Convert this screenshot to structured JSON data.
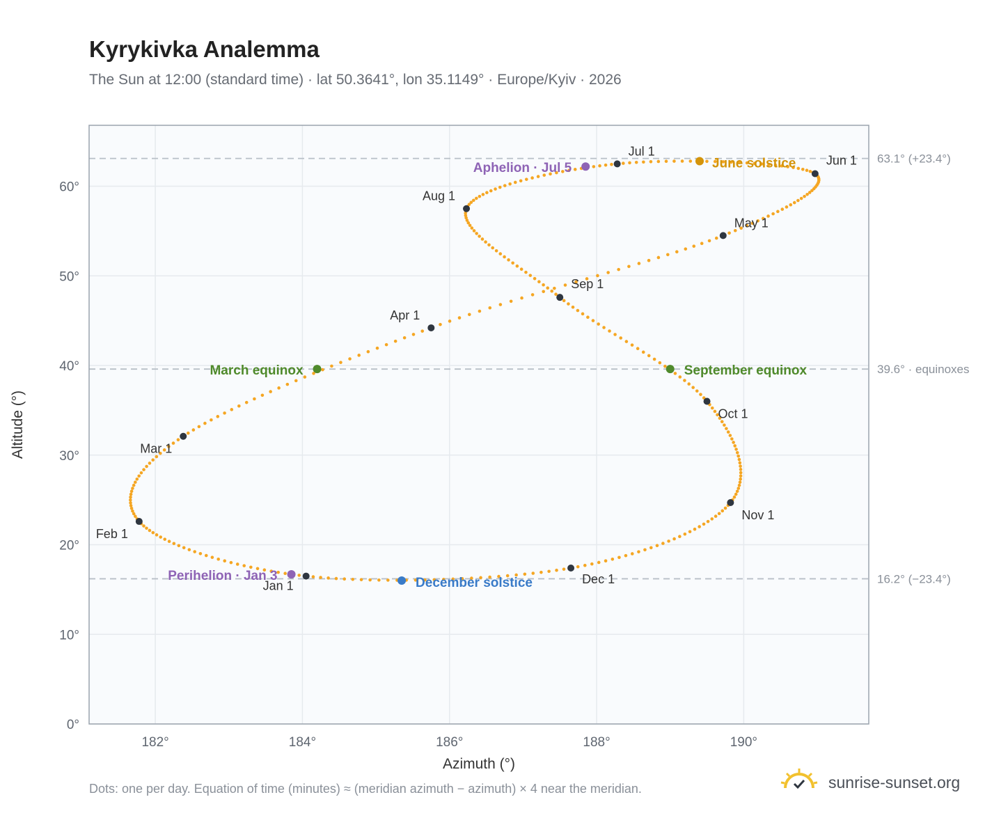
{
  "title": "Kyrykivka Analemma",
  "subtitle": "The Sun at 12:00 (standard time) · lat 50.3641°, lon 35.1149° · Europe/Kyiv · 2026",
  "footnote": "Dots: one per day. Equation of time (minutes) ≈ (meridian azimuth − azimuth) × 4 near the meridian.",
  "brand": "sunrise-sunset.org",
  "colors": {
    "curve": "#f5a623",
    "month_dot": "#2f3640",
    "equinox": "#4f8a2b",
    "june_solstice": "#d4940a",
    "december_solstice": "#3a7bc8",
    "apsis": "#8e63b5",
    "reference_line": "#b8bfc7",
    "grid": "#e6eaee",
    "plot_background": "#f9fbfd",
    "frame": "#9aa3ad"
  },
  "chart_data": {
    "type": "scatter",
    "title": "Kyrykivka Analemma",
    "xlabel": "Azimuth (°)",
    "ylabel": "Altitude (°)",
    "xlim": [
      181.1,
      191.7
    ],
    "ylim": [
      0,
      66.8
    ],
    "xticks": [
      182,
      184,
      186,
      188,
      190
    ],
    "xtick_labels": [
      "182°",
      "184°",
      "186°",
      "188°",
      "190°"
    ],
    "yticks": [
      0,
      10,
      20,
      30,
      40,
      50,
      60
    ],
    "ytick_labels": [
      "0°",
      "10°",
      "20°",
      "30°",
      "40°",
      "50°",
      "60°"
    ],
    "grid": true,
    "reference_lines": [
      {
        "altitude": 63.1,
        "label": "63.1° (+23.4°)"
      },
      {
        "altitude": 39.6,
        "label": "39.6° · equinoxes"
      },
      {
        "altitude": 16.2,
        "label": "16.2° (−23.4°)"
      }
    ],
    "path_keypoints": [
      {
        "date": "Jan 1",
        "az": 184.05,
        "alt": 16.5
      },
      {
        "date": "Feb 1",
        "az": 181.78,
        "alt": 22.6
      },
      {
        "date": "Mar 1",
        "az": 182.38,
        "alt": 32.1
      },
      {
        "date": "Apr 1",
        "az": 185.75,
        "alt": 44.2
      },
      {
        "date": "May 1",
        "az": 189.72,
        "alt": 54.5
      },
      {
        "date": "Jun 1",
        "az": 190.97,
        "alt": 61.4
      },
      {
        "date": "Jul 1",
        "az": 188.28,
        "alt": 62.5
      },
      {
        "date": "Aug 1",
        "az": 186.23,
        "alt": 57.5
      },
      {
        "date": "Sep 1",
        "az": 187.5,
        "alt": 47.6
      },
      {
        "date": "Oct 1",
        "az": 189.5,
        "alt": 36.0
      },
      {
        "date": "Nov 1",
        "az": 189.82,
        "alt": 24.7
      },
      {
        "date": "Dec 1",
        "az": 187.65,
        "alt": 17.4
      }
    ],
    "month_markers": [
      {
        "label": "Jan 1",
        "az": 184.05,
        "alt": 16.5
      },
      {
        "label": "Feb 1",
        "az": 181.78,
        "alt": 22.6
      },
      {
        "label": "Mar 1",
        "az": 182.38,
        "alt": 32.1
      },
      {
        "label": "Apr 1",
        "az": 185.75,
        "alt": 44.2
      },
      {
        "label": "May 1",
        "az": 189.72,
        "alt": 54.5
      },
      {
        "label": "Jun 1",
        "az": 190.97,
        "alt": 61.4
      },
      {
        "label": "Jul 1",
        "az": 188.28,
        "alt": 62.5
      },
      {
        "label": "Aug 1",
        "az": 186.23,
        "alt": 57.5
      },
      {
        "label": "Sep 1",
        "az": 187.5,
        "alt": 47.6
      },
      {
        "label": "Oct 1",
        "az": 189.5,
        "alt": 36.0
      },
      {
        "label": "Nov 1",
        "az": 189.82,
        "alt": 24.7
      },
      {
        "label": "Dec 1",
        "az": 187.65,
        "alt": 17.4
      }
    ],
    "events": [
      {
        "label": "March equinox",
        "az": 184.2,
        "alt": 39.6,
        "kind": "equinox"
      },
      {
        "label": "September equinox",
        "az": 189.0,
        "alt": 39.6,
        "kind": "equinox"
      },
      {
        "label": "June solstice",
        "az": 189.4,
        "alt": 62.8,
        "kind": "june_solstice"
      },
      {
        "label": "December solstice",
        "az": 185.35,
        "alt": 16.0,
        "kind": "december_solstice"
      },
      {
        "label": "Aphelion · Jul 5",
        "az": 187.85,
        "alt": 62.2,
        "kind": "apsis"
      },
      {
        "label": "Perihelion · Jan 3",
        "az": 183.85,
        "alt": 16.7,
        "kind": "apsis"
      }
    ]
  }
}
